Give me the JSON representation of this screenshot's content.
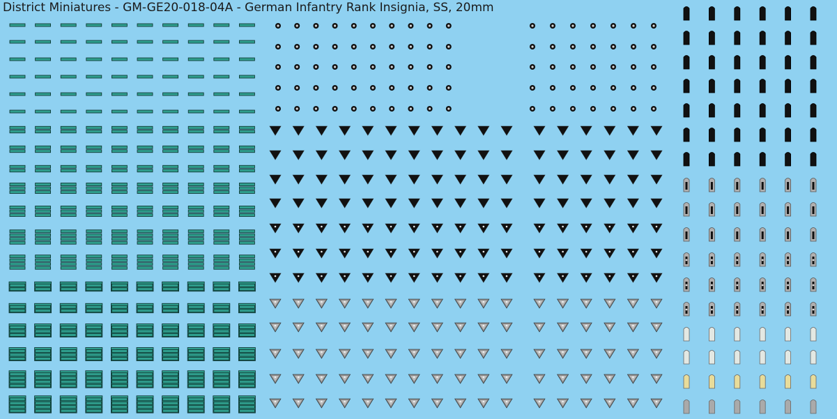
{
  "title": "District Miniatures - GM-GE20-018-04A - German Infantry Rank Insignia, SS, 20mm",
  "colors": {
    "background": "#8fd1f1",
    "teal": "#2f9f8e",
    "black": "#111111",
    "silver": "#bdbdbd",
    "pale": "#e3e8e3",
    "gold": "#e8dc9a"
  },
  "sections": [
    {
      "name": "sleeve-bars",
      "icon": "teal-bar-icon",
      "rows": 22
    },
    {
      "name": "collar-pips",
      "icon": "black-pip-icon",
      "rows": 5
    },
    {
      "name": "chevrons",
      "icon": "chevron-icon",
      "rows": 12
    },
    {
      "name": "shoulder-straps",
      "icon": "shoulder-strap-icon",
      "rows": 17
    }
  ]
}
